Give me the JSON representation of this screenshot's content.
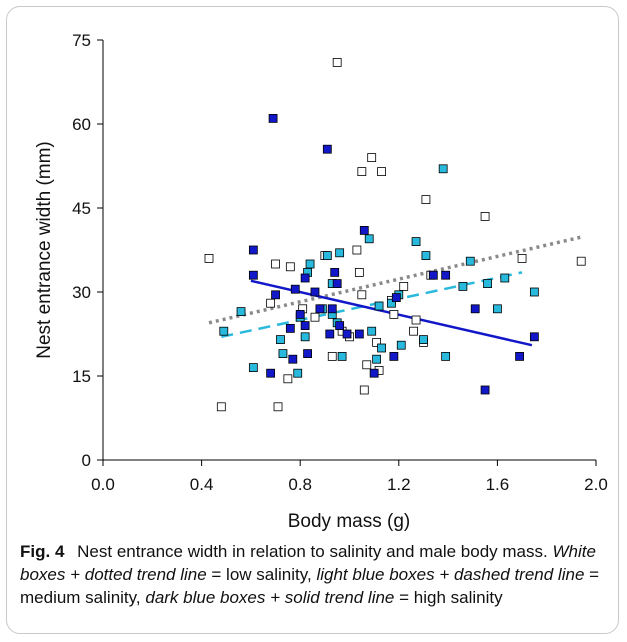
{
  "chart_data": {
    "type": "scatter",
    "xlabel": "Body mass (g)",
    "ylabel": "Nest entrance width (mm)",
    "xlim": [
      0.0,
      2.0
    ],
    "ylim": [
      0,
      75
    ],
    "x_ticks": [
      "0.0",
      "0.4",
      "0.8",
      "1.2",
      "1.6",
      "2.0"
    ],
    "y_ticks": [
      "0",
      "15",
      "30",
      "45",
      "60",
      "75"
    ],
    "x_tick_values": [
      0.0,
      0.4,
      0.8,
      1.2,
      1.6,
      2.0
    ],
    "y_tick_values": [
      0,
      15,
      30,
      45,
      60,
      75
    ],
    "grid": false,
    "series": [
      {
        "key": "low",
        "marker_fill": "#ffffff",
        "line_color": "#8a8a8a",
        "line_style": "dotted",
        "points": [
          [
            0.43,
            36.0
          ],
          [
            0.48,
            9.5
          ],
          [
            0.68,
            28.0
          ],
          [
            0.7,
            35.0
          ],
          [
            0.71,
            9.5
          ],
          [
            0.75,
            14.5
          ],
          [
            0.76,
            34.5
          ],
          [
            0.81,
            27.0
          ],
          [
            0.86,
            25.5
          ],
          [
            0.9,
            36.5
          ],
          [
            0.93,
            18.5
          ],
          [
            0.95,
            71.0
          ],
          [
            0.97,
            23.0
          ],
          [
            1.0,
            22.0
          ],
          [
            1.03,
            37.5
          ],
          [
            1.04,
            33.5
          ],
          [
            1.05,
            29.5
          ],
          [
            1.05,
            51.5
          ],
          [
            1.06,
            12.5
          ],
          [
            1.07,
            17.0
          ],
          [
            1.09,
            54.0
          ],
          [
            1.11,
            21.0
          ],
          [
            1.12,
            16.0
          ],
          [
            1.13,
            51.5
          ],
          [
            1.17,
            28.5
          ],
          [
            1.18,
            26.0
          ],
          [
            1.22,
            31.0
          ],
          [
            1.26,
            23.0
          ],
          [
            1.27,
            25.0
          ],
          [
            1.3,
            21.0
          ],
          [
            1.31,
            46.5
          ],
          [
            1.33,
            33.0
          ],
          [
            1.55,
            43.5
          ],
          [
            1.7,
            36.0
          ],
          [
            1.94,
            35.5
          ]
        ],
        "trend": [
          [
            0.43,
            24.5
          ],
          [
            1.94,
            39.8
          ]
        ]
      },
      {
        "key": "medium",
        "marker_fill": "#29b9dd",
        "line_color": "#29b9dd",
        "line_style": "dashed",
        "points": [
          [
            0.49,
            23.0
          ],
          [
            0.56,
            26.5
          ],
          [
            0.61,
            16.5
          ],
          [
            0.72,
            21.5
          ],
          [
            0.73,
            19.0
          ],
          [
            0.79,
            15.5
          ],
          [
            0.8,
            25.5
          ],
          [
            0.82,
            22.0
          ],
          [
            0.83,
            33.5
          ],
          [
            0.84,
            35.0
          ],
          [
            0.89,
            27.0
          ],
          [
            0.91,
            36.5
          ],
          [
            0.93,
            26.0
          ],
          [
            0.93,
            31.5
          ],
          [
            0.95,
            24.5
          ],
          [
            0.96,
            37.0
          ],
          [
            0.97,
            18.5
          ],
          [
            1.08,
            39.5
          ],
          [
            1.09,
            23.0
          ],
          [
            1.11,
            18.0
          ],
          [
            1.12,
            27.5
          ],
          [
            1.13,
            20.0
          ],
          [
            1.17,
            28.0
          ],
          [
            1.2,
            29.5
          ],
          [
            1.21,
            20.5
          ],
          [
            1.27,
            39.0
          ],
          [
            1.3,
            21.5
          ],
          [
            1.31,
            36.5
          ],
          [
            1.38,
            52.0
          ],
          [
            1.39,
            18.5
          ],
          [
            1.46,
            31.0
          ],
          [
            1.49,
            35.5
          ],
          [
            1.56,
            31.5
          ],
          [
            1.6,
            27.0
          ],
          [
            1.63,
            32.5
          ],
          [
            1.75,
            30.0
          ]
        ],
        "trend": [
          [
            0.48,
            22.0
          ],
          [
            1.7,
            33.5
          ]
        ]
      },
      {
        "key": "high",
        "marker_fill": "#1218c8",
        "line_color": "#1218c8",
        "line_style": "solid",
        "points": [
          [
            0.61,
            37.5
          ],
          [
            0.61,
            33.0
          ],
          [
            0.68,
            15.5
          ],
          [
            0.69,
            61.0
          ],
          [
            0.7,
            29.5
          ],
          [
            0.76,
            23.5
          ],
          [
            0.77,
            18.0
          ],
          [
            0.78,
            30.5
          ],
          [
            0.8,
            26.0
          ],
          [
            0.82,
            32.5
          ],
          [
            0.82,
            24.0
          ],
          [
            0.83,
            19.0
          ],
          [
            0.86,
            30.0
          ],
          [
            0.88,
            27.0
          ],
          [
            0.91,
            55.5
          ],
          [
            0.92,
            22.5
          ],
          [
            0.93,
            27.0
          ],
          [
            0.94,
            33.5
          ],
          [
            0.95,
            31.5
          ],
          [
            0.96,
            24.0
          ],
          [
            0.99,
            22.5
          ],
          [
            1.04,
            22.5
          ],
          [
            1.06,
            41.0
          ],
          [
            1.1,
            15.5
          ],
          [
            1.18,
            18.5
          ],
          [
            1.19,
            29.0
          ],
          [
            1.34,
            33.0
          ],
          [
            1.39,
            33.0
          ],
          [
            1.51,
            27.0
          ],
          [
            1.55,
            12.5
          ],
          [
            1.69,
            18.5
          ],
          [
            1.75,
            22.0
          ]
        ],
        "trend": [
          [
            0.6,
            32.0
          ],
          [
            1.74,
            20.5
          ]
        ]
      }
    ]
  },
  "caption": {
    "label": "Fig. 4",
    "text_1": "Nest entrance width in relation to salinity and male body mass.",
    "italic_1": "White boxes + dotted trend line",
    "text_2": "= low salinity,",
    "italic_2": "light blue boxes + dashed trend line",
    "text_3": "= medium salinity,",
    "italic_3": "dark blue boxes + solid trend line",
    "text_4": "= high salinity"
  }
}
